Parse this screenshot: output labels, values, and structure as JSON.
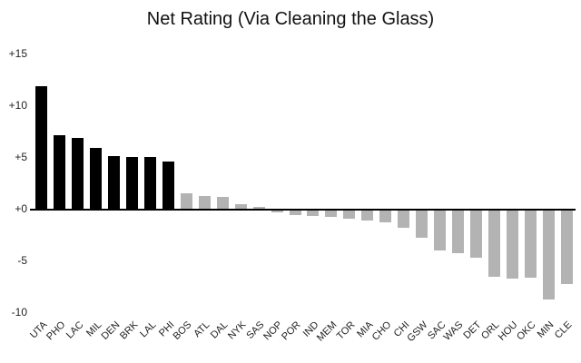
{
  "chart_data": {
    "type": "bar",
    "title": "Net Rating (Via Cleaning the Glass)",
    "xlabel": "",
    "ylabel": "",
    "categories": [
      "UTA",
      "PHO",
      "LAC",
      "MIL",
      "DEN",
      "BRK",
      "LAL",
      "PHI",
      "BOS",
      "ATL",
      "DAL",
      "NYK",
      "SAS",
      "NOP",
      "POR",
      "IND",
      "MEM",
      "TOR",
      "MIA",
      "CHO",
      "CHI",
      "GSW",
      "SAC",
      "WAS",
      "DET",
      "ORL",
      "HOU",
      "OKC",
      "MIN",
      "CLE"
    ],
    "values": [
      11.8,
      7.1,
      6.8,
      5.9,
      5.1,
      5.0,
      5.0,
      4.6,
      1.5,
      1.2,
      1.1,
      0.4,
      0.2,
      -0.2,
      -0.4,
      -0.5,
      -0.6,
      -0.8,
      -1.0,
      -1.1,
      -1.7,
      -2.6,
      -3.9,
      -4.1,
      -4.6,
      -6.4,
      -6.6,
      -6.5,
      -8.6,
      -7.1
    ],
    "highlight_count": 8,
    "colors": {
      "highlight": "#000000",
      "default": "#b3b3b3",
      "axis_line": "#000000"
    },
    "ylim": [
      -10,
      15
    ],
    "yticks": [
      {
        "label": "+15",
        "value": 15
      },
      {
        "label": "+10",
        "value": 10
      },
      {
        "label": "+5",
        "value": 5
      },
      {
        "label": "+0",
        "value": 0
      },
      {
        "label": "-5",
        "value": -5
      },
      {
        "label": "-10",
        "value": -10
      }
    ],
    "grid": false,
    "legend": false
  }
}
